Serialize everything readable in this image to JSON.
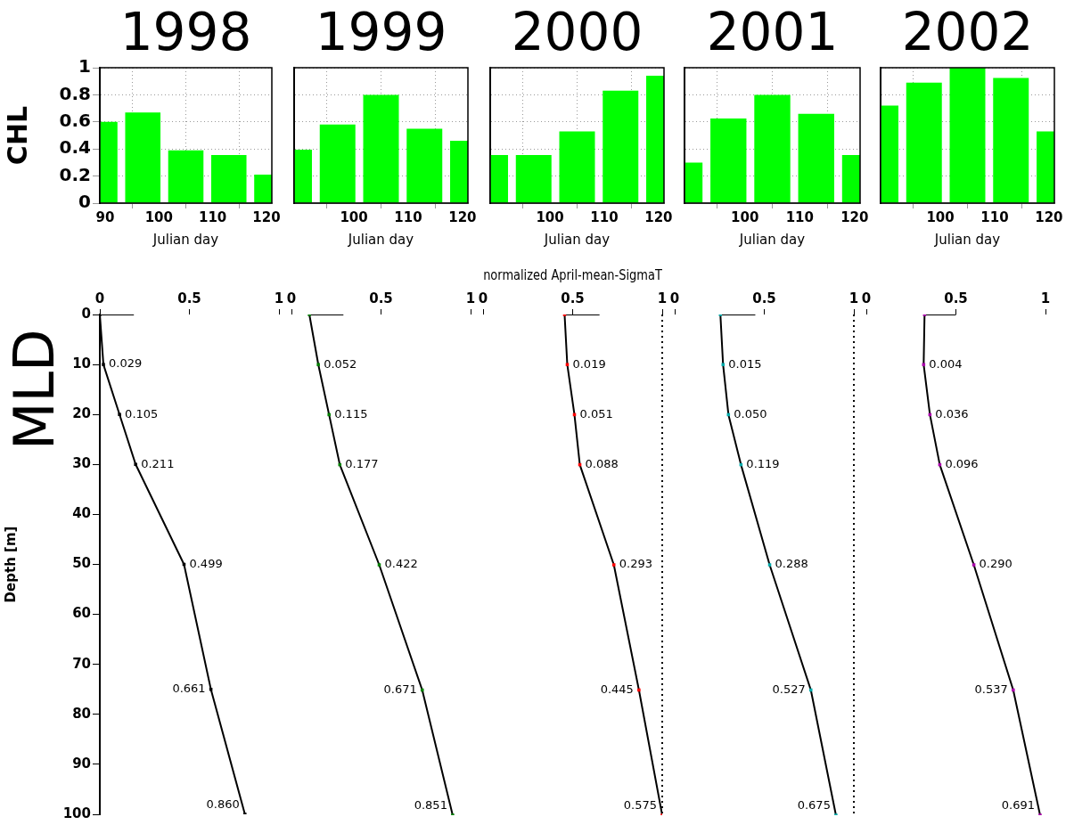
{
  "chart_data": [
    {
      "type": "bar",
      "title": "1998",
      "xlabel": "Julian day",
      "ylabel": "CHL",
      "x": [
        89,
        97,
        105,
        113,
        121
      ],
      "values": [
        0.6,
        0.67,
        0.39,
        0.355,
        0.21
      ],
      "color": "#00ff00",
      "xlim": [
        89,
        121
      ],
      "xticks": [
        90,
        100,
        110,
        120
      ],
      "ylim": [
        0,
        1
      ],
      "yticks": [
        0,
        0.2,
        0.4,
        0.6,
        0.8,
        1
      ],
      "grid": true
    },
    {
      "type": "bar",
      "title": "1999",
      "xlabel": "Julian day",
      "x": [
        89,
        97,
        105,
        113,
        121
      ],
      "values": [
        0.395,
        0.58,
        0.8,
        0.55,
        0.46
      ],
      "color": "#00ff00",
      "xlim": [
        89,
        121
      ],
      "xticks": [
        100,
        110,
        120
      ],
      "ylim": [
        0,
        1
      ],
      "yticks": [
        0,
        0.2,
        0.4,
        0.6,
        0.8,
        1
      ],
      "grid": true,
      "tick_labels": "x"
    },
    {
      "type": "bar",
      "title": "2000",
      "xlabel": "Julian day",
      "x": [
        89,
        97,
        105,
        113,
        121
      ],
      "values": [
        0.355,
        0.355,
        0.53,
        0.83,
        0.94
      ],
      "color": "#00ff00",
      "xlim": [
        89,
        121
      ],
      "xticks": [
        100,
        110,
        120
      ],
      "ylim": [
        0,
        1
      ],
      "yticks": [
        0,
        0.2,
        0.4,
        0.6,
        0.8,
        1
      ],
      "grid": true,
      "tick_labels": "x"
    },
    {
      "type": "bar",
      "title": "2001",
      "xlabel": "Julian day",
      "x": [
        89,
        97,
        105,
        113,
        121
      ],
      "values": [
        0.3,
        0.625,
        0.8,
        0.66,
        0.355
      ],
      "color": "#00ff00",
      "xlim": [
        89,
        121
      ],
      "xticks": [
        100,
        110,
        120
      ],
      "ylim": [
        0,
        1
      ],
      "yticks": [
        0,
        0.2,
        0.4,
        0.6,
        0.8,
        1
      ],
      "grid": true,
      "tick_labels": "x"
    },
    {
      "type": "bar",
      "title": "2002",
      "xlabel": "Julian day",
      "x": [
        89,
        97,
        105,
        113,
        121
      ],
      "values": [
        0.72,
        0.89,
        1.0,
        0.925,
        0.53
      ],
      "color": "#00ff00",
      "xlim": [
        89,
        121
      ],
      "xticks": [
        100,
        110,
        120
      ],
      "ylim": [
        0,
        1
      ],
      "yticks": [
        0,
        0.2,
        0.4,
        0.6,
        0.8,
        1
      ],
      "grid": true,
      "tick_labels": "x"
    },
    {
      "type": "line",
      "title": "MLD",
      "ylabel": "Depth [m]",
      "xlim": [
        0,
        1
      ],
      "xticks": [
        0,
        0.5,
        1
      ],
      "ylim": [
        100,
        0
      ],
      "yticks": [
        0,
        10,
        20,
        30,
        40,
        50,
        60,
        70,
        80,
        90,
        100
      ],
      "marker": "square",
      "series": [
        {
          "color": "#000000",
          "colors": [
            "#000000",
            "#000000",
            "#000000",
            "#000000",
            "#000000",
            "#000000",
            "#000000"
          ],
          "x": [
            0.0,
            0.02,
            0.11,
            0.2,
            0.47,
            0.62,
            0.81
          ],
          "values": [
            0,
            10,
            20,
            30,
            50,
            75,
            100
          ]
        },
        {
          "color": "#000000",
          "marker": "none",
          "x": [
            0.0,
            0.19
          ],
          "values": [
            0,
            0
          ]
        }
      ],
      "annotations": [
        {
          "text": "0.029",
          "x": 0.02,
          "y": 10
        },
        {
          "text": "0.105",
          "x": 0.11,
          "y": 20
        },
        {
          "text": "0.211",
          "x": 0.2,
          "y": 30
        },
        {
          "text": "0.499",
          "x": 0.47,
          "y": 50
        },
        {
          "text": "0.661",
          "x": 0.62,
          "y": 75
        },
        {
          "text": "0.860",
          "x": 0.81,
          "y": 100
        }
      ]
    },
    {
      "type": "line",
      "tick_labels": "x",
      "xlim": [
        0,
        1
      ],
      "xticks": [
        0,
        0.5,
        1
      ],
      "ylim": [
        100,
        0
      ],
      "yticks": [
        0,
        10,
        20,
        30,
        40,
        50,
        60,
        70,
        80,
        90,
        100
      ],
      "marker": "square",
      "series": [
        {
          "color": "#000000",
          "colors": [
            "#008000",
            "#008000",
            "#008000",
            "#008000",
            "#008000",
            "#008000",
            "#008000"
          ],
          "x": [
            0.1,
            0.15,
            0.21,
            0.27,
            0.49,
            0.73,
            0.9
          ],
          "values": [
            0,
            10,
            20,
            30,
            50,
            75,
            100
          ]
        },
        {
          "color": "#000000",
          "marker": "none",
          "x": [
            0.1,
            0.29
          ],
          "values": [
            0,
            0
          ]
        }
      ],
      "annotations": [
        {
          "text": "0.052",
          "x": 0.15,
          "y": 10
        },
        {
          "text": "0.115",
          "x": 0.21,
          "y": 20
        },
        {
          "text": "0.177",
          "x": 0.27,
          "y": 30
        },
        {
          "text": "0.422",
          "x": 0.49,
          "y": 50
        },
        {
          "text": "0.671",
          "x": 0.73,
          "y": 75
        },
        {
          "text": "0.851",
          "x": 0.9,
          "y": 100
        }
      ]
    },
    {
      "type": "line",
      "xlabel": "normalized April-mean-SigmaT",
      "tick_labels": "x",
      "xlim": [
        0,
        1
      ],
      "xticks": [
        0,
        0.5,
        1
      ],
      "ylim": [
        100,
        0
      ],
      "yticks": [
        0,
        10,
        20,
        30,
        40,
        50,
        60,
        70,
        80,
        90,
        100
      ],
      "marker": "square",
      "ref_lines": [
        {
          "axis": "x",
          "value": 1,
          "line_style": "dotted"
        }
      ],
      "series": [
        {
          "color": "#000000",
          "colors": [
            "#ff0000",
            "#ff0000",
            "#ff0000",
            "#ff0000",
            "#ff0000",
            "#ff0000",
            "#ff0000"
          ],
          "x": [
            0.455,
            0.47,
            0.51,
            0.54,
            0.73,
            0.87,
            1.0
          ],
          "values": [
            0,
            10,
            20,
            30,
            50,
            75,
            100
          ]
        },
        {
          "color": "#000000",
          "marker": "none",
          "x": [
            0.455,
            0.65
          ],
          "values": [
            0,
            0
          ]
        }
      ],
      "annotations": [
        {
          "text": "0.019",
          "x": 0.47,
          "y": 10
        },
        {
          "text": "0.051",
          "x": 0.51,
          "y": 20
        },
        {
          "text": "0.088",
          "x": 0.54,
          "y": 30
        },
        {
          "text": "0.293",
          "x": 0.73,
          "y": 50
        },
        {
          "text": "0.445",
          "x": 0.87,
          "y": 75
        },
        {
          "text": "0.575",
          "x": 1.0,
          "y": 100
        }
      ]
    },
    {
      "type": "line",
      "tick_labels": "x",
      "xlim": [
        0,
        1
      ],
      "xticks": [
        0,
        0.5,
        1
      ],
      "ylim": [
        100,
        0
      ],
      "yticks": [
        0,
        10,
        20,
        30,
        40,
        50,
        60,
        70,
        80,
        90,
        100
      ],
      "marker": "square",
      "ref_lines": [
        {
          "axis": "x",
          "value": 1,
          "line_style": "dotted"
        }
      ],
      "series": [
        {
          "color": "#000000",
          "colors": [
            "#00aaaa",
            "#00aaaa",
            "#00aaaa",
            "#00aaaa",
            "#00aaaa",
            "#00aaaa",
            "#00aaaa"
          ],
          "x": [
            0.255,
            0.27,
            0.3,
            0.37,
            0.53,
            0.76,
            0.9
          ],
          "values": [
            0,
            10,
            20,
            30,
            50,
            75,
            100
          ]
        },
        {
          "color": "#000000",
          "marker": "none",
          "x": [
            0.255,
            0.45
          ],
          "values": [
            0,
            0
          ]
        }
      ],
      "annotations": [
        {
          "text": "0.015",
          "x": 0.27,
          "y": 10
        },
        {
          "text": "0.050",
          "x": 0.3,
          "y": 20
        },
        {
          "text": "0.119",
          "x": 0.37,
          "y": 30
        },
        {
          "text": "0.288",
          "x": 0.53,
          "y": 50
        },
        {
          "text": "0.527",
          "x": 0.76,
          "y": 75
        },
        {
          "text": "0.675",
          "x": 0.9,
          "y": 100
        }
      ]
    },
    {
      "type": "line",
      "tick_labels": "x",
      "xlim": [
        0,
        1
      ],
      "xticks": [
        0,
        0.5,
        1
      ],
      "ylim": [
        100,
        0
      ],
      "yticks": [
        0,
        10,
        20,
        30,
        40,
        50,
        60,
        70,
        80,
        90,
        100
      ],
      "marker": "square",
      "series": [
        {
          "color": "#000000",
          "colors": [
            "#aa00aa",
            "#aa00aa",
            "#aa00aa",
            "#aa00aa",
            "#aa00aa",
            "#aa00aa",
            "#aa00aa"
          ],
          "x": [
            0.325,
            0.32,
            0.355,
            0.41,
            0.6,
            0.82,
            0.97
          ],
          "values": [
            0,
            10,
            20,
            30,
            50,
            75,
            100
          ]
        },
        {
          "color": "#000000",
          "marker": "none",
          "x": [
            0.325,
            0.5
          ],
          "values": [
            0,
            0
          ]
        }
      ],
      "annotations": [
        {
          "text": "0.004",
          "x": 0.32,
          "y": 10
        },
        {
          "text": "0.036",
          "x": 0.355,
          "y": 20
        },
        {
          "text": "0.096",
          "x": 0.41,
          "y": 30
        },
        {
          "text": "0.290",
          "x": 0.6,
          "y": 50
        },
        {
          "text": "0.537",
          "x": 0.82,
          "y": 75
        },
        {
          "text": "0.691",
          "x": 0.97,
          "y": 100
        }
      ]
    }
  ]
}
